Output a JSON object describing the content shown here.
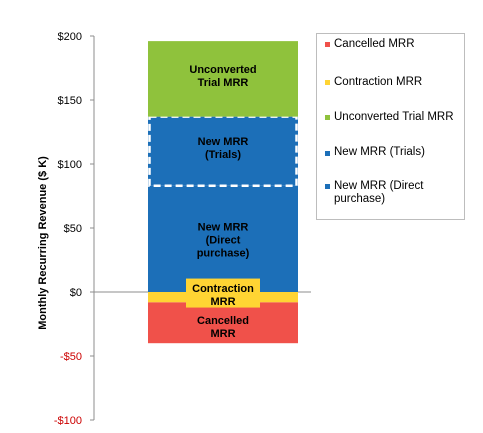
{
  "chart_data": {
    "type": "bar",
    "stacked": true,
    "ylabel": "Monthly Recurring Revenue ($ K)",
    "ylim": [
      -100,
      200
    ],
    "yticks": [
      {
        "value": 200,
        "label": "$200"
      },
      {
        "value": 150,
        "label": "$150"
      },
      {
        "value": 100,
        "label": "$100"
      },
      {
        "value": 50,
        "label": "$50"
      },
      {
        "value": 0,
        "label": "$0"
      },
      {
        "value": -50,
        "label": "-$50"
      },
      {
        "value": -100,
        "label": "-$100"
      }
    ],
    "series": [
      {
        "name": "Cancelled MRR",
        "from": -40,
        "to": -8,
        "color": "#f0514a",
        "label_lines": [
          "Cancelled",
          "MRR"
        ]
      },
      {
        "name": "Contraction MRR",
        "from": -8,
        "to": 0,
        "color": "#ffd433",
        "label_lines": [
          "Contraction",
          "MRR"
        ]
      },
      {
        "name": "New MRR (Direct purchase)",
        "from": 0,
        "to": 83,
        "color": "#1c6fb8",
        "label_lines": [
          "New MRR",
          "(Direct",
          "purchase)"
        ]
      },
      {
        "name": "New MRR (Trials)",
        "from": 83,
        "to": 137,
        "color": "#1c6fb8",
        "dashed_outline": true,
        "label_lines": [
          "New MRR",
          "(Trials)"
        ]
      },
      {
        "name": "Unconverted Trial MRR",
        "from": 137,
        "to": 196,
        "color": "#8fc23c",
        "label_lines": [
          "Unconverted",
          "Trial MRR"
        ]
      }
    ],
    "legend": {
      "placement": "right",
      "entries": [
        {
          "lines": [
            "Cancelled MRR"
          ],
          "color": "#f0514a",
          "marker": "square"
        },
        {
          "lines": [
            "Contraction MRR"
          ],
          "color": "#ffd433",
          "marker": "square"
        },
        {
          "lines": [
            "Unconverted Trial MRR"
          ],
          "color": "#8fc23c",
          "marker": "square"
        },
        {
          "lines": [
            "New MRR (Trials)"
          ],
          "color": "#1c6fb8",
          "marker": "dashed"
        },
        {
          "lines": [
            "New MRR (Direct",
            "purchase)"
          ],
          "color": "#1c6fb8",
          "marker": "square"
        }
      ]
    }
  }
}
